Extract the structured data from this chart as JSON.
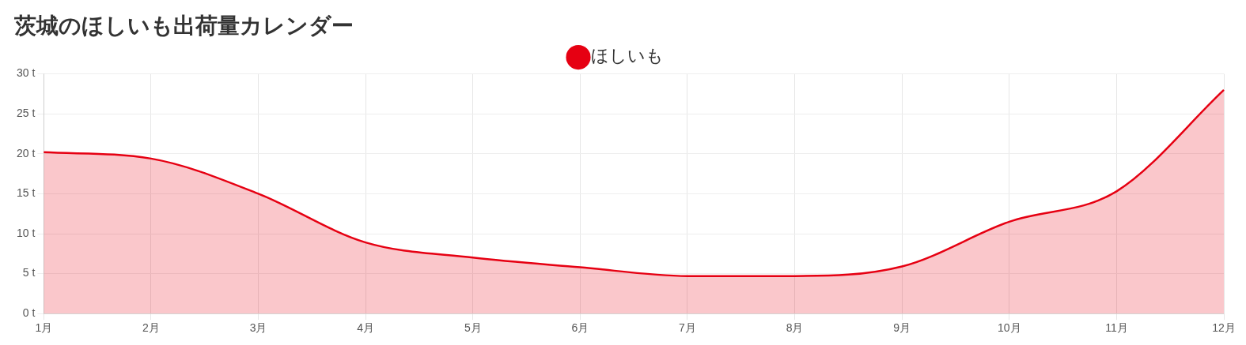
{
  "chart_data": {
    "type": "area",
    "title": "茨城のほしいも出荷量カレンダー",
    "categories": [
      "1月",
      "2月",
      "3月",
      "4月",
      "5月",
      "6月",
      "7月",
      "8月",
      "9月",
      "10月",
      "11月",
      "12月"
    ],
    "series": [
      {
        "name": "ほしいも",
        "color": "#e60012",
        "values": [
          20.2,
          19.4,
          15.0,
          8.9,
          7.0,
          5.8,
          4.7,
          4.7,
          5.9,
          11.5,
          15.3,
          28.0
        ]
      }
    ],
    "ylim": [
      0,
      30
    ],
    "yticks": [
      {
        "value": 0,
        "label": "0 t"
      },
      {
        "value": 5,
        "label": "5 t"
      },
      {
        "value": 10,
        "label": "10 t"
      },
      {
        "value": 15,
        "label": "15 t"
      },
      {
        "value": 20,
        "label": "20 t"
      },
      {
        "value": 25,
        "label": "25 t"
      },
      {
        "value": 30,
        "label": "30 t"
      }
    ],
    "grid": true,
    "legend": "top",
    "marker": "none",
    "line_style": "solid"
  }
}
